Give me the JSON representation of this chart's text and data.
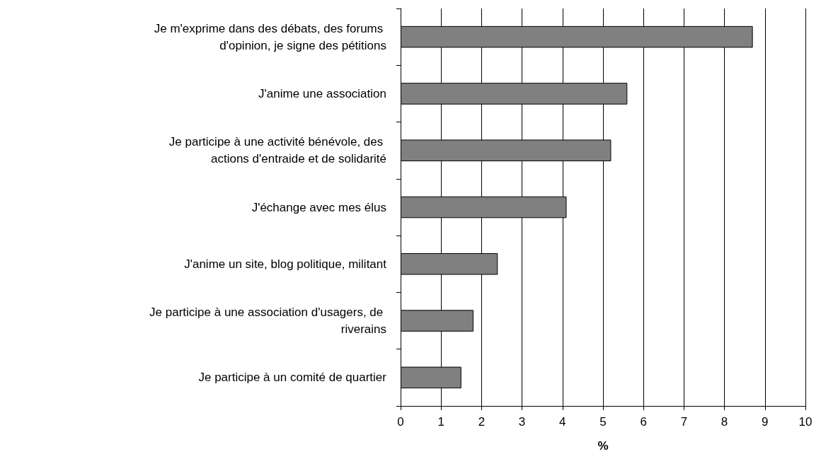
{
  "chart_data": {
    "type": "bar",
    "orientation": "horizontal",
    "xlabel": "%",
    "categories": [
      "Je m'exprime dans des débats, des forums d'opinion, je signe des pétitions",
      "J'anime une association",
      "Je participe à une activité bénévole, des actions d'entraide et de solidarité",
      "J'échange avec mes élus",
      "J'anime un site, blog politique, militant",
      "Je participe à une association d'usagers, de riverains",
      "Je participe à un comité de quartier"
    ],
    "values": [
      8.7,
      5.6,
      5.2,
      4.1,
      2.4,
      1.8,
      1.5
    ],
    "color": "#808080",
    "xlim": [
      0,
      10
    ],
    "xticks": [
      0,
      1,
      2,
      3,
      4,
      5,
      6,
      7,
      8,
      9,
      10
    ],
    "grid": "x"
  }
}
